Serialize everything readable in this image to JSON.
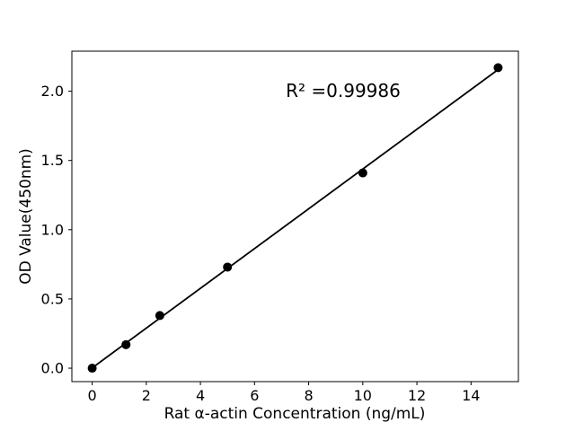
{
  "figure": {
    "background": "#ffffff",
    "foreground": "#000000"
  },
  "chart_data": {
    "type": "scatter",
    "title": "",
    "xlabel": "Rat α-actin Concentration (ng/mL)",
    "ylabel": "OD Value(450nm)",
    "annotation": {
      "text": "R² =0.99986",
      "x": 9.27,
      "y": 1.99
    },
    "x": [
      0,
      1.25,
      2.5,
      5,
      10,
      15
    ],
    "y": [
      0.0,
      0.17,
      0.38,
      0.73,
      1.41,
      2.17
    ],
    "fit_line": {
      "slope": 0.1436,
      "intercept": 0.002,
      "x_start": 0,
      "x_end": 15,
      "r_squared": 0.99986
    },
    "xticks": [
      0,
      2,
      4,
      6,
      8,
      10,
      12,
      14
    ],
    "xtick_labels": [
      "0",
      "2",
      "4",
      "6",
      "8",
      "10",
      "12",
      "14"
    ],
    "yticks": [
      0.0,
      0.5,
      1.0,
      1.5,
      2.0
    ],
    "ytick_labels": [
      "0.0",
      "0.5",
      "1.0",
      "1.5",
      "2.0"
    ],
    "xlim": [
      -0.75,
      15.75
    ],
    "ylim": [
      -0.097,
      2.289
    ],
    "grid": false,
    "legend": null,
    "marker_color": "#000000",
    "line_color": "#000000",
    "spine_color": "#000000",
    "background": "#ffffff"
  }
}
